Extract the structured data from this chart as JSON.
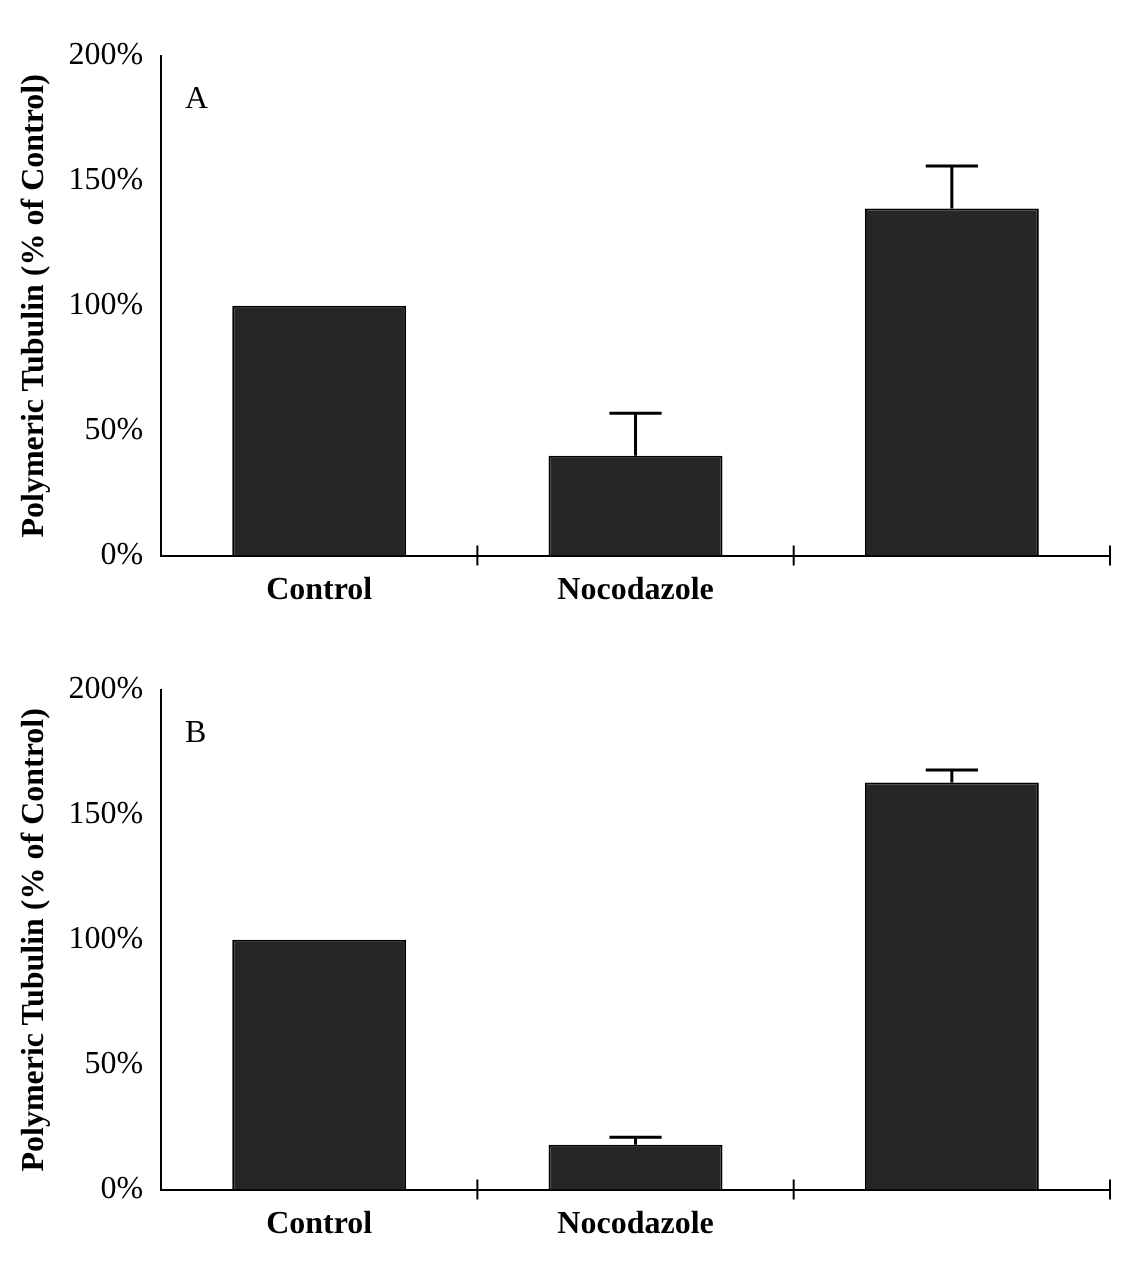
{
  "chart_data": [
    {
      "type": "bar",
      "ylabel": "Polymeric Tubulin (% of Control)",
      "categories": [
        "Control",
        "Nocodazole",
        null
      ],
      "values": [
        100,
        40,
        139
      ],
      "errors": [
        null,
        [
          40,
          57
        ],
        [
          139,
          156
        ]
      ],
      "color": "#262626",
      "ylim": [
        0,
        200
      ],
      "yticks": [
        {
          "value": 0,
          "label": "0%"
        },
        {
          "value": 50,
          "label": "50%"
        },
        {
          "value": 100,
          "label": "100%"
        },
        {
          "value": 150,
          "label": "150%"
        },
        {
          "value": 200,
          "label": "200%"
        }
      ],
      "grid": false,
      "annotations": [
        "A"
      ]
    },
    {
      "type": "bar",
      "ylabel": "Polymeric Tubulin (% of Control)",
      "categories": [
        "Control",
        "Nocodazole",
        null
      ],
      "values": [
        100,
        18,
        163
      ],
      "errors": [
        null,
        [
          18,
          21
        ],
        [
          163,
          168
        ]
      ],
      "color": "#262626",
      "ylim": [
        0,
        200
      ],
      "yticks": [
        {
          "value": 0,
          "label": "0%"
        },
        {
          "value": 50,
          "label": "50%"
        },
        {
          "value": 100,
          "label": "100%"
        },
        {
          "value": 150,
          "label": "150%"
        },
        {
          "value": 200,
          "label": "200%"
        }
      ],
      "grid": false,
      "annotations": [
        "B"
      ]
    }
  ]
}
